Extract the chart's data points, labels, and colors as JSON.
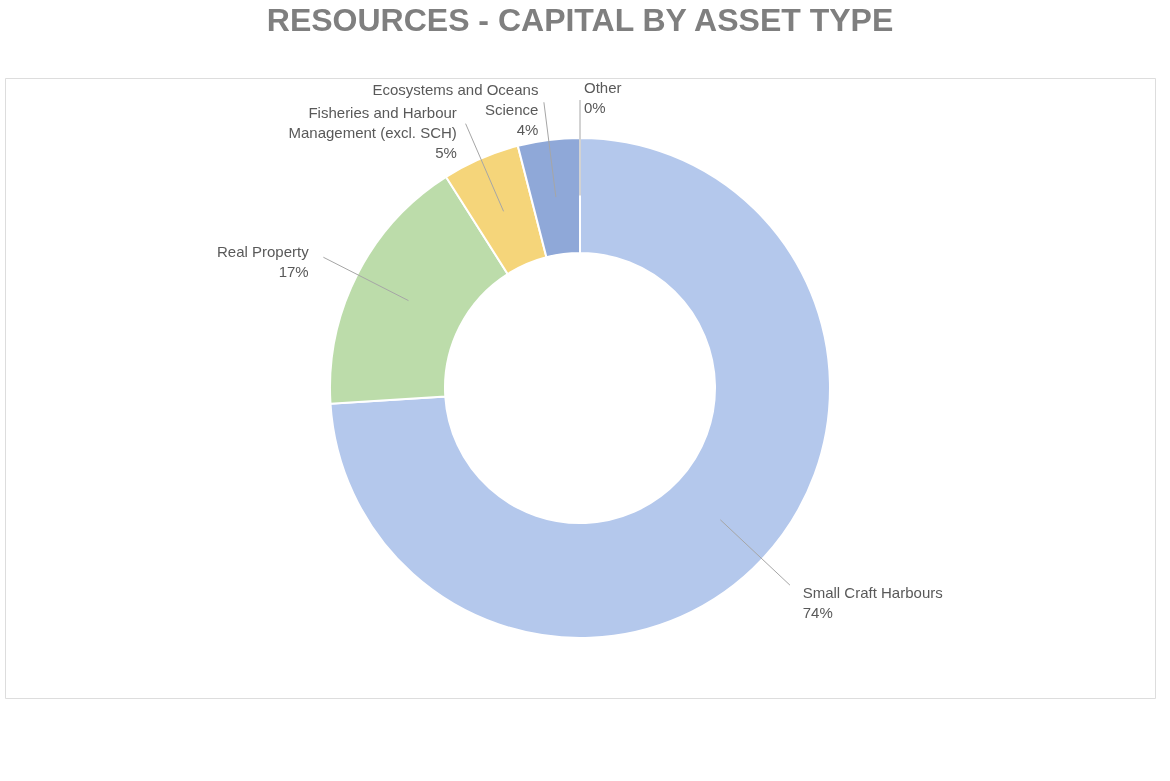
{
  "chart_data": {
    "type": "donut",
    "title": "RESOURCES - CAPITAL BY ASSET TYPE",
    "categories": [
      "Small Craft Harbours",
      "Real Property",
      "Fisheries and Harbour Management (excl. SCH)",
      "Ecosystems and Oceans Science",
      "Other"
    ],
    "values": [
      74,
      17,
      5,
      4,
      0
    ],
    "value_labels": [
      "74%",
      "17%",
      "5%",
      "4%",
      "0%"
    ],
    "colors": [
      "#b4c8ec",
      "#bcdcaa",
      "#f5d57a",
      "#8fa8d8",
      "#c9c9c9"
    ],
    "legend": false
  }
}
